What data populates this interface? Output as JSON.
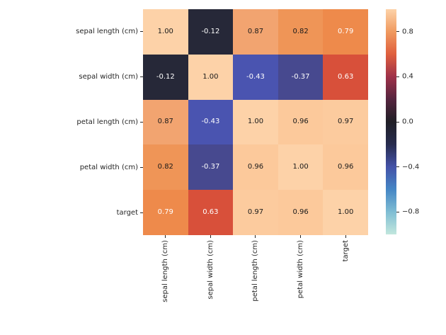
{
  "figure": {
    "background": "#ffffff",
    "text_color": "#262626"
  },
  "chart_data": {
    "type": "heatmap",
    "title": "",
    "xlabel": "",
    "ylabel": "",
    "grid": "off",
    "legend_position": "right-colorbar",
    "categories": [
      "sepal length (cm)",
      "sepal width (cm)",
      "petal length (cm)",
      "petal width (cm)",
      "target"
    ],
    "matrix": [
      [
        1.0,
        -0.12,
        0.87,
        0.82,
        0.79
      ],
      [
        -0.12,
        1.0,
        -0.43,
        -0.37,
        0.63
      ],
      [
        0.87,
        -0.43,
        1.0,
        0.96,
        0.97
      ],
      [
        0.82,
        -0.37,
        0.96,
        1.0,
        0.96
      ],
      [
        0.79,
        0.63,
        0.97,
        0.96,
        1.0
      ]
    ],
    "cell_labels": [
      [
        "1.00",
        "-0.12",
        "0.87",
        "0.82",
        "0.79"
      ],
      [
        "-0.12",
        "1.00",
        "-0.43",
        "-0.37",
        "0.63"
      ],
      [
        "0.87",
        "-0.43",
        "1.00",
        "0.96",
        "0.97"
      ],
      [
        "0.82",
        "-0.37",
        "0.96",
        "1.00",
        "0.96"
      ],
      [
        "0.79",
        "0.63",
        "0.97",
        "0.96",
        "1.00"
      ]
    ],
    "value_styles": {
      "1.00": {
        "bg": "#fdd2a8",
        "text": "#1a1a1a"
      },
      "0.97": {
        "bg": "#fccb9e",
        "text": "#1a1a1a"
      },
      "0.96": {
        "bg": "#fcc99b",
        "text": "#1a1a1a"
      },
      "0.87": {
        "bg": "#f2a470",
        "text": "#1a1a1a"
      },
      "0.82": {
        "bg": "#ef9557",
        "text": "#1a1a1a"
      },
      "0.79": {
        "bg": "#ee8a4b",
        "text": "#ffffff"
      },
      "0.63": {
        "bg": "#d8503a",
        "text": "#ffffff"
      },
      "-0.12": {
        "bg": "#262838",
        "text": "#ffffff"
      },
      "-0.37": {
        "bg": "#47498f",
        "text": "#ffffff"
      },
      "-0.43": {
        "bg": "#4a54b0",
        "text": "#ffffff"
      }
    },
    "colorbar": {
      "range": [
        -1,
        1
      ],
      "colormap_name": "icefire",
      "gradient_top_to_bottom": [
        "#fdd2a8",
        "#f09a5f",
        "#df5f3e",
        "#9e3149",
        "#55253f",
        "#201f26",
        "#272c4e",
        "#4452a8",
        "#4586c5",
        "#7fbdd3",
        "#c2e7dd"
      ],
      "ticks": [
        {
          "label": "0.8",
          "value": 0.8
        },
        {
          "label": "0.4",
          "value": 0.4
        },
        {
          "label": "0.0",
          "value": 0.0
        },
        {
          "label": "−0.4",
          "value": -0.4
        },
        {
          "label": "−0.8",
          "value": -0.8
        }
      ]
    }
  }
}
